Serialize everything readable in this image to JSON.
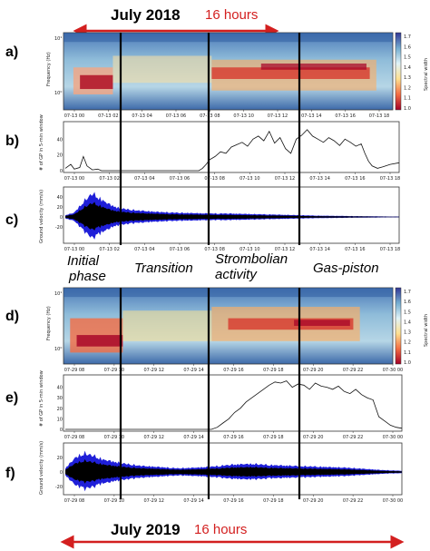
{
  "headers": {
    "top": {
      "main": "July 2018",
      "sub": "16 hours"
    },
    "bottom": {
      "main": "July 2019",
      "sub": "16 hours"
    }
  },
  "colors": {
    "arrow": "#d31f1f",
    "velocity_envelope": "#1f1fd8",
    "velocity_signal": "#000000"
  },
  "phases": [
    "Initial phase",
    "Transition",
    "Strombolian activity",
    "Gas-piston"
  ],
  "phase_lines": {
    "initial": "Initial",
    "phase": "phase",
    "transition": "Transition",
    "strombolian": "Strombolian",
    "activity": "activity",
    "gaspiston": "Gas-piston"
  },
  "panel_letters": [
    "a)",
    "b)",
    "c)",
    "d)",
    "e)",
    "f)"
  ],
  "colorbar": {
    "label": "Spectral width",
    "ticks": [
      "1.7",
      "1.6",
      "1.5",
      "1.4",
      "1.3",
      "1.2",
      "1.1",
      "1.0"
    ]
  },
  "axis_labels": {
    "frequency": "Frequency (Hz)",
    "gp_count": "# of GP in 5-min window",
    "velocity": "Ground velocity (mm/s)"
  },
  "time_ticks_2018": [
    "07-13 00",
    "07-13 02",
    "07-13 04",
    "07-13 06",
    "07-13 08",
    "07-13 10",
    "07-13 12",
    "07-13 14",
    "07-13 16",
    "07-13 18"
  ],
  "time_ticks_2019": [
    "07-29 08",
    "07-29 10",
    "07-29 12",
    "07-29 14",
    "07-29 16",
    "07-29 18",
    "07-29 20",
    "07-29 22",
    "07-30 00"
  ],
  "freq_ticks": [
    "10¹",
    "10⁰"
  ],
  "chart_data": [
    {
      "type": "heatmap",
      "panel": "a)",
      "year": 2018,
      "ylabel": "Frequency (Hz)",
      "yscale": "log",
      "yticks": [
        "10¹",
        "10⁰"
      ],
      "colorbar": {
        "label": "Spectral width",
        "range": [
          1.0,
          1.7
        ]
      },
      "x": [
        "07-13 00",
        "07-13 02",
        "07-13 04",
        "07-13 06",
        "07-13 08",
        "07-13 10",
        "07-13 12",
        "07-13 14",
        "07-13 16",
        "07-13 18"
      ]
    },
    {
      "type": "line",
      "panel": "b)",
      "year": 2018,
      "ylabel": "# of GP in 5-min window",
      "ylim": [
        0,
        60
      ],
      "yticks": [
        0,
        20,
        40
      ],
      "x_hours": [
        0,
        0.3,
        0.5,
        0.8,
        1.0,
        1.2,
        1.5,
        1.8,
        2.0,
        2.5,
        3,
        4,
        5,
        6,
        7.4,
        7.6,
        7.8,
        8.0,
        8.3,
        8.6,
        8.9,
        9.2,
        9.5,
        9.8,
        10.1,
        10.4,
        10.7,
        11.0,
        11.3,
        11.6,
        11.9,
        12.2,
        12.5,
        12.8,
        13.1,
        13.4,
        13.7,
        14.0,
        14.3,
        14.6,
        14.9,
        15.2,
        15.5,
        15.8,
        16.1,
        16.4,
        16.6,
        16.8,
        17.0,
        17.3,
        17.6,
        18.0,
        18.5
      ],
      "values": [
        3,
        8,
        2,
        4,
        18,
        6,
        1,
        2,
        0,
        0,
        0,
        0,
        0,
        0,
        0,
        3,
        8,
        14,
        18,
        24,
        22,
        30,
        33,
        36,
        31,
        40,
        44,
        38,
        50,
        35,
        42,
        28,
        22,
        40,
        45,
        52,
        44,
        40,
        36,
        42,
        38,
        32,
        40,
        36,
        31,
        34,
        22,
        12,
        6,
        3,
        5,
        8,
        10
      ]
    },
    {
      "type": "area",
      "panel": "c)",
      "year": 2018,
      "ylabel": "Ground velocity (mm/s)",
      "yticks": [
        -20,
        0,
        20,
        40
      ],
      "x_hours": [
        0,
        0.5,
        1,
        1.5,
        2,
        2.5,
        3,
        4,
        5,
        6,
        7,
        8,
        9,
        10,
        11,
        12,
        13,
        14,
        15,
        16,
        17,
        18,
        18.5
      ],
      "amplitude": [
        4,
        10,
        35,
        55,
        40,
        28,
        20,
        15,
        12,
        10,
        9,
        8,
        8,
        7,
        6,
        5,
        4,
        3,
        2.5,
        2,
        1.5,
        1,
        1
      ]
    },
    {
      "type": "heatmap",
      "panel": "d)",
      "year": 2019,
      "ylabel": "Frequency (Hz)",
      "yscale": "log",
      "yticks": [
        "10¹",
        "10⁰"
      ],
      "colorbar": {
        "label": "Spectral width",
        "range": [
          1.0,
          1.7
        ]
      },
      "x": [
        "07-29 08",
        "07-29 10",
        "07-29 12",
        "07-29 14",
        "07-29 16",
        "07-29 18",
        "07-29 20",
        "07-29 22",
        "07-30 00"
      ]
    },
    {
      "type": "line",
      "panel": "e)",
      "year": 2019,
      "ylabel": "# of GP in 5-min window",
      "ylim": [
        0,
        50
      ],
      "yticks": [
        0,
        10,
        20,
        30,
        40
      ],
      "x_hours": [
        0,
        2,
        4,
        6,
        7.6,
        7.9,
        8.2,
        8.5,
        8.8,
        9.1,
        9.4,
        9.7,
        10.0,
        10.3,
        10.6,
        10.9,
        11.2,
        11.5,
        11.8,
        12.1,
        12.4,
        12.7,
        13.0,
        13.3,
        13.6,
        13.9,
        14.2,
        14.5,
        14.8,
        15.1,
        15.4,
        15.7,
        16.0,
        16.3,
        16.6,
        16.9,
        17.2,
        17.5
      ],
      "values": [
        0,
        0,
        0,
        0,
        0,
        2,
        6,
        10,
        16,
        20,
        26,
        30,
        34,
        38,
        42,
        45,
        44,
        46,
        40,
        43,
        42,
        38,
        44,
        41,
        40,
        38,
        41,
        36,
        34,
        38,
        33,
        30,
        28,
        12,
        8,
        4,
        2,
        1
      ]
    },
    {
      "type": "area",
      "panel": "f)",
      "year": 2019,
      "ylabel": "Ground velocity (mm/s)",
      "yticks": [
        -20,
        0,
        20
      ],
      "x_hours": [
        0,
        0.5,
        1,
        1.5,
        2,
        3,
        4,
        5,
        6,
        7,
        8,
        9,
        10,
        11,
        12,
        13,
        14,
        15,
        16,
        17,
        18
      ],
      "amplitude": [
        6,
        22,
        30,
        26,
        20,
        14,
        10,
        8,
        6,
        7,
        9,
        12,
        13,
        11,
        10,
        9,
        8,
        7,
        5,
        3,
        2
      ]
    }
  ]
}
